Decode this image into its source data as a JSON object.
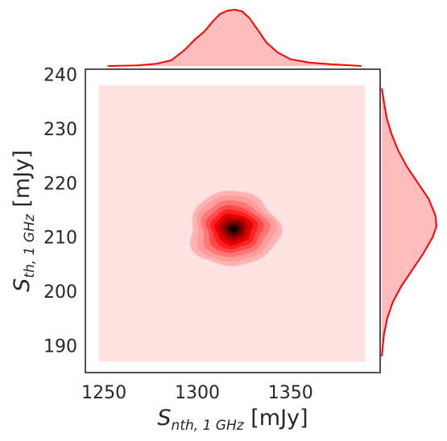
{
  "chart_data": {
    "type": "kde-joint",
    "x": {
      "label_main": "S",
      "label_sub": "nth, 1 GHz",
      "label_unit": " [mJy]",
      "ticks": [
        1250,
        1300,
        1350
      ],
      "tick_labels": [
        "1250",
        "1300",
        "1350"
      ],
      "range": [
        1240,
        1398
      ]
    },
    "y": {
      "label_main": "S",
      "label_sub": "th, 1 GHz",
      "label_unit": " [mJy]",
      "ticks": [
        190,
        200,
        210,
        220,
        230,
        240
      ],
      "tick_labels": [
        "190",
        "200",
        "210",
        "220",
        "230",
        "240"
      ],
      "range": [
        185,
        241
      ]
    },
    "joint_extent": {
      "x": [
        1247,
        1390
      ],
      "y": [
        187,
        238
      ]
    },
    "density_peak": {
      "x": 1319.5,
      "y": 211.5
    },
    "contour_levels": [
      {
        "level": 1,
        "color": "#ffb3b3",
        "rx": 24,
        "ry": 6.95
      },
      {
        "level": 2,
        "color": "#ff9c9c",
        "rx": 21,
        "ry": 6.1
      },
      {
        "level": 3,
        "color": "#ff7777",
        "rx": 18,
        "ry": 5.2
      },
      {
        "level": 4,
        "color": "#ff4a4a",
        "rx": 15,
        "ry": 4.35
      },
      {
        "level": 5,
        "color": "#ff1f1f",
        "rx": 12.3,
        "ry": 3.6
      },
      {
        "level": 6,
        "color": "#e60000",
        "rx": 9.8,
        "ry": 2.85
      },
      {
        "level": 7,
        "color": "#b30000",
        "rx": 7.5,
        "ry": 2.2
      },
      {
        "level": 8,
        "color": "#7a0000",
        "rx": 5.4,
        "ry": 1.55
      },
      {
        "level": 9,
        "color": "#3d0000",
        "rx": 3.4,
        "ry": 0.95
      },
      {
        "level": 10,
        "color": "#000000",
        "rx": 1.8,
        "ry": 0.45
      }
    ],
    "marginal_x": {
      "x": [
        1252,
        1268,
        1278,
        1286,
        1293,
        1299,
        1304,
        1308,
        1312,
        1316,
        1320,
        1324,
        1328,
        1332,
        1337,
        1343,
        1350,
        1360,
        1372,
        1388
      ],
      "density": [
        0.0,
        0.01,
        0.04,
        0.1,
        0.28,
        0.48,
        0.62,
        0.78,
        0.92,
        0.98,
        1.0,
        0.97,
        0.85,
        0.66,
        0.42,
        0.24,
        0.12,
        0.06,
        0.03,
        0.0
      ]
    },
    "marginal_y": {
      "y": [
        188,
        192,
        195,
        198,
        201,
        204,
        207,
        210,
        212,
        214,
        217,
        220,
        223,
        226,
        229,
        232,
        235,
        237.5
      ],
      "density": [
        0.0,
        0.04,
        0.1,
        0.2,
        0.36,
        0.56,
        0.76,
        0.93,
        1.0,
        0.98,
        0.86,
        0.66,
        0.46,
        0.3,
        0.18,
        0.09,
        0.04,
        0.0
      ]
    },
    "colors": {
      "line": "#ff0000",
      "marginal_fill": "#ffbdbd",
      "background_level": "#ffe3e3",
      "frame": "#262626"
    },
    "grid": false
  }
}
